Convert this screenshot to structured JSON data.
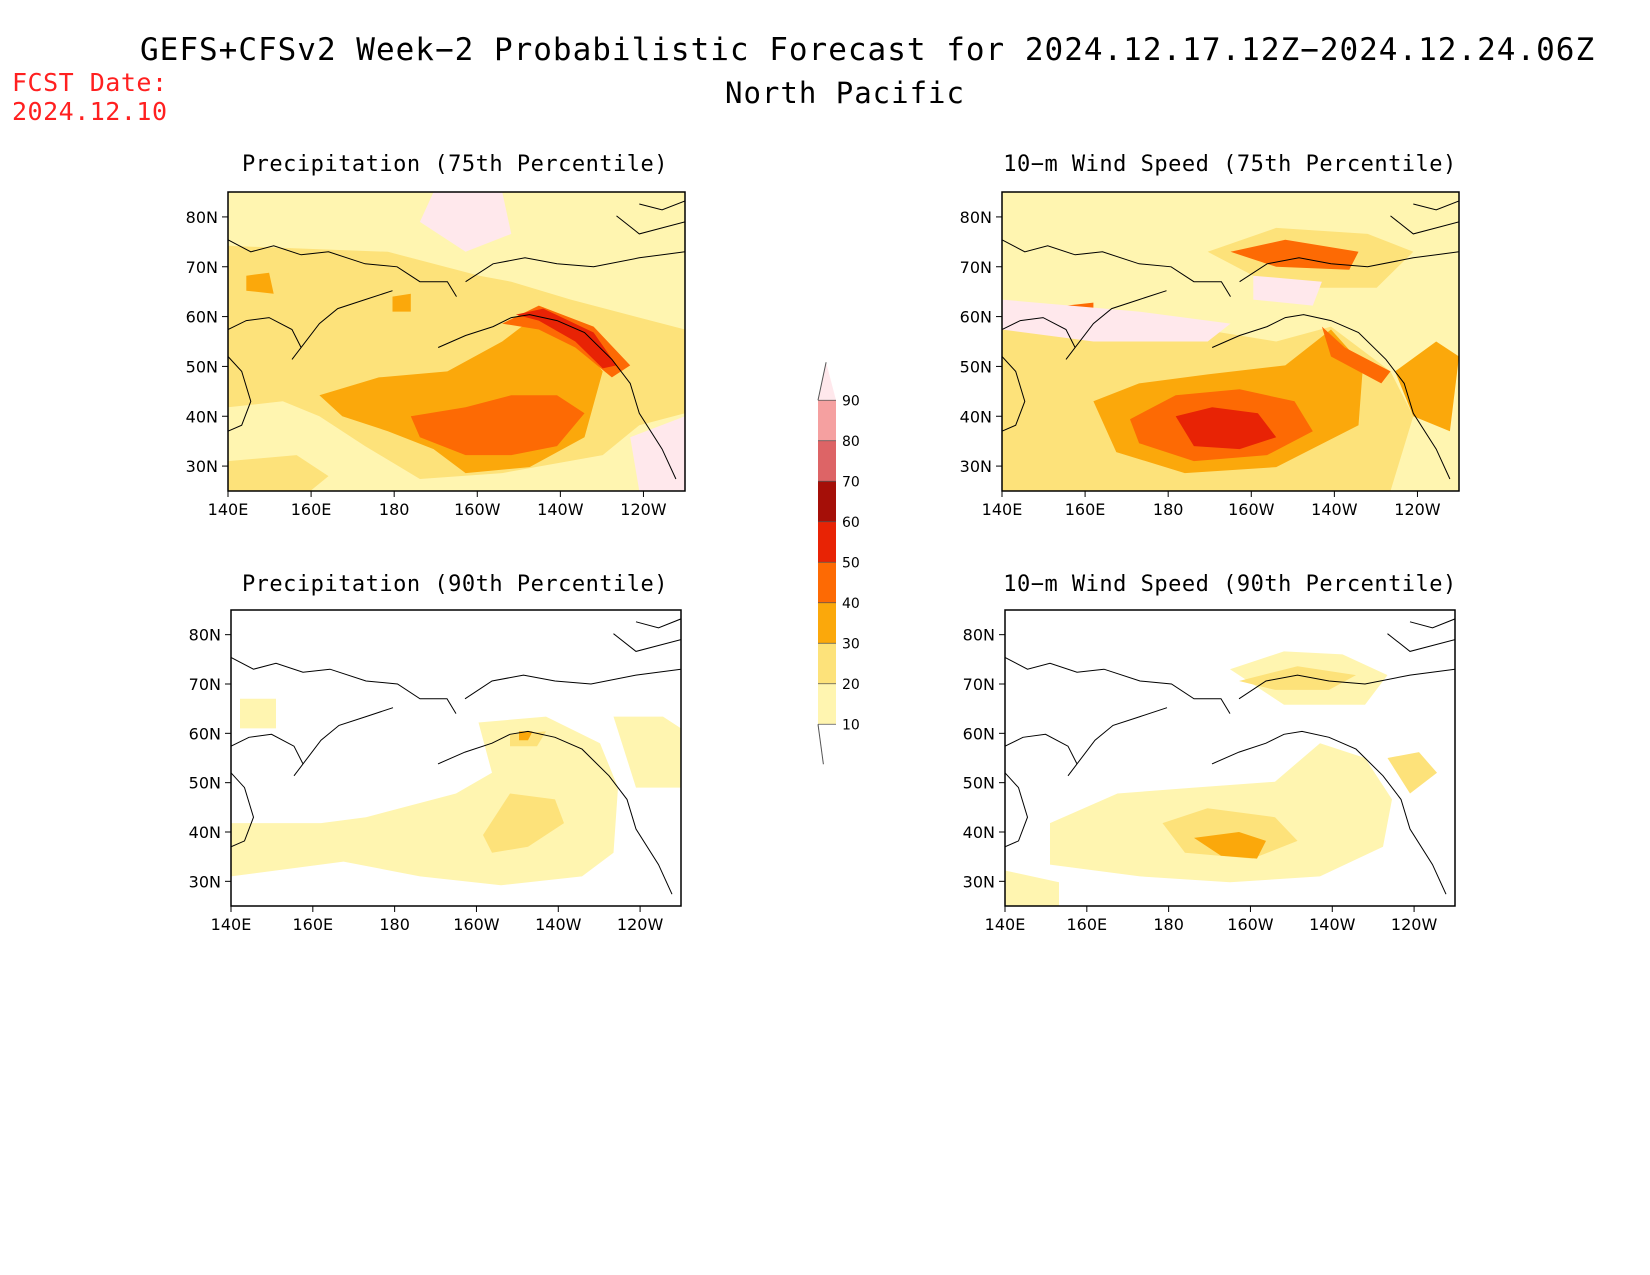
{
  "header": {
    "title": "GEFS+CFSv2 Week−2 Probabilistic Forecast for 2024.12.17.12Z−2024.12.24.06Z",
    "region": "North Pacific",
    "fcst_label": "FCST Date:",
    "fcst_date": "2024.12.10"
  },
  "colors": {
    "c10": "#fff5b0",
    "c20": "#fde27a",
    "c30": "#fba80b",
    "c40": "#fd6a04",
    "c50": "#e82305",
    "c60": "#a50f08",
    "c70": "#dd6466",
    "c80": "#f5a0a0",
    "c90": "#ffe8ec"
  },
  "colorbar": {
    "levels": [
      "10",
      "20",
      "30",
      "40",
      "50",
      "60",
      "70",
      "80",
      "90"
    ]
  },
  "panels": [
    {
      "id": "precip75",
      "title": "Precipitation (75th Percentile)"
    },
    {
      "id": "wind75",
      "title": "10−m Wind Speed (75th Percentile)"
    },
    {
      "id": "precip90",
      "title": "Precipitation (90th Percentile)"
    },
    {
      "id": "wind90",
      "title": "10−m Wind Speed (90th Percentile)"
    }
  ],
  "axes": {
    "lon_ticks": [
      "140E",
      "160E",
      "180",
      "160W",
      "140W",
      "120W"
    ],
    "lat_ticks": [
      "80N",
      "70N",
      "60N",
      "50N",
      "40N",
      "30N"
    ]
  }
}
